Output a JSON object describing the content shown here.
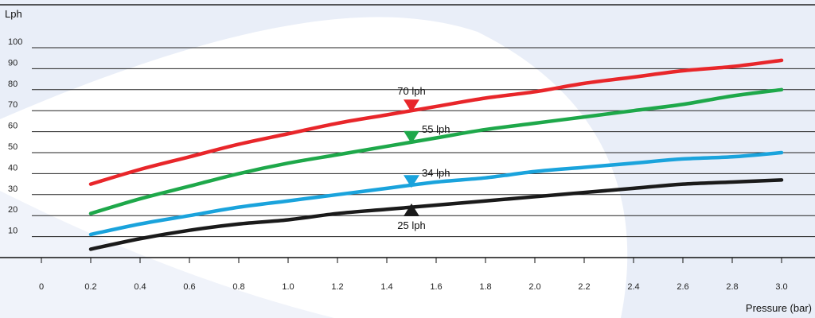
{
  "chart_data": {
    "type": "line",
    "ylabel": "Lph",
    "xlabel": "Pressure (bar)",
    "xlim": [
      0,
      3.0
    ],
    "ylim": [
      0,
      100
    ],
    "x_ticks": [
      "0",
      "0.2",
      "0.4",
      "0.6",
      "0.8",
      "1.0",
      "1.2",
      "1.4",
      "1.6",
      "1.8",
      "2.0",
      "2.2",
      "2.4",
      "2.6",
      "2.8",
      "3.0"
    ],
    "y_ticks": [
      "10",
      "20",
      "30",
      "40",
      "50",
      "60",
      "70",
      "80",
      "90",
      "100"
    ],
    "grid": "horizontal",
    "series": [
      {
        "color": "#e8262a",
        "x": [
          0.2,
          0.4,
          0.6,
          0.8,
          1.0,
          1.2,
          1.4,
          1.6,
          1.8,
          2.0,
          2.2,
          2.4,
          2.6,
          2.8,
          3.0
        ],
        "y": [
          35,
          42,
          48,
          54,
          59,
          64,
          68,
          72,
          76,
          79,
          83,
          86,
          89,
          91,
          94
        ]
      },
      {
        "color": "#1ea84a",
        "x": [
          0.2,
          0.4,
          0.6,
          0.8,
          1.0,
          1.2,
          1.4,
          1.6,
          1.8,
          2.0,
          2.2,
          2.4,
          2.6,
          2.8,
          3.0
        ],
        "y": [
          21,
          28,
          34,
          40,
          45,
          49,
          53,
          57,
          61,
          64,
          67,
          70,
          73,
          77,
          80
        ]
      },
      {
        "color": "#1aa3dc",
        "x": [
          0.2,
          0.4,
          0.6,
          0.8,
          1.0,
          1.2,
          1.4,
          1.6,
          1.8,
          2.0,
          2.2,
          2.4,
          2.6,
          2.8,
          3.0
        ],
        "y": [
          11,
          16,
          20,
          24,
          27,
          30,
          33,
          36,
          38,
          41,
          43,
          45,
          47,
          48,
          50
        ]
      },
      {
        "color": "#1a1a1a",
        "x": [
          0.2,
          0.4,
          0.6,
          0.8,
          1.0,
          1.2,
          1.4,
          1.6,
          1.8,
          2.0,
          2.2,
          2.4,
          2.6,
          2.8,
          3.0
        ],
        "y": [
          4,
          9,
          13,
          16,
          18,
          21,
          23,
          25,
          27,
          29,
          31,
          33,
          35,
          36,
          37
        ]
      }
    ],
    "annotations": [
      {
        "text": "70 lph",
        "x": 1.5,
        "y": 70,
        "color": "#e8262a",
        "pointer": "down",
        "label_pos": "above"
      },
      {
        "text": "55 lph",
        "x": 1.5,
        "y": 55,
        "color": "#1ea84a",
        "pointer": "down",
        "label_pos": "above-right"
      },
      {
        "text": "34 lph",
        "x": 1.5,
        "y": 34,
        "color": "#1aa3dc",
        "pointer": "down",
        "label_pos": "above-right"
      },
      {
        "text": "25 lph",
        "x": 1.5,
        "y": 25,
        "color": "#1a1a1a",
        "pointer": "up",
        "label_pos": "below"
      }
    ],
    "background_color": "#e9eef8"
  }
}
